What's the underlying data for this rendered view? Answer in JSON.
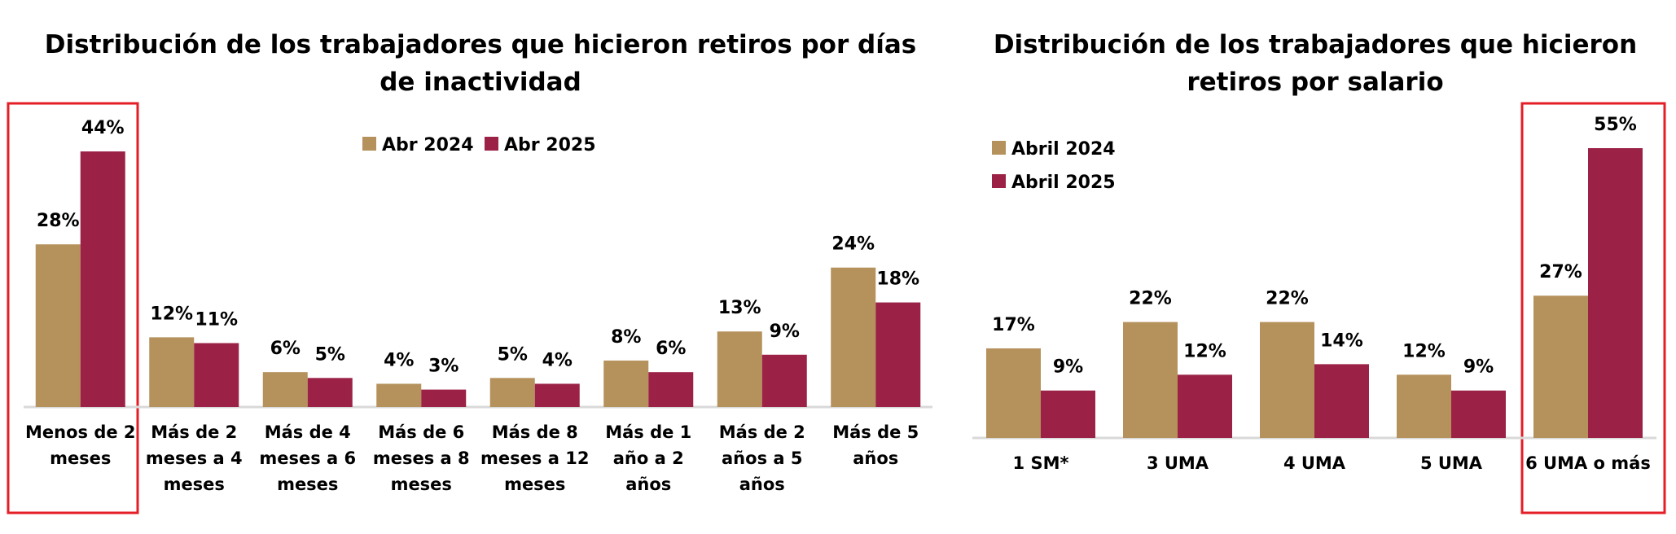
{
  "chart_data": [
    {
      "type": "bar",
      "title": "Distribución de los trabajadores que hicieron retiros por días de inactividad",
      "categories": [
        "Menos de 2 meses",
        "Más de 2 meses a 4 meses",
        "Más de 4 meses a 6 meses",
        "Más de 6 meses a 8 meses",
        "Más de 8 meses a 12 meses",
        "Más de 1 año a 2 años",
        "Más de 2 años a 5 años",
        "Más de 5 años"
      ],
      "series": [
        {
          "name": "Abr 2024",
          "color": "#b5915c",
          "values": [
            28,
            12,
            6,
            4,
            5,
            8,
            13,
            24
          ],
          "value_labels": [
            "28%",
            "12%",
            "6%",
            "4%",
            "5%",
            "8%",
            "13%",
            "24%"
          ]
        },
        {
          "name": "Abr 2025",
          "color": "#9b2246",
          "values": [
            44,
            11,
            5,
            3,
            4,
            6,
            9,
            18
          ],
          "value_labels": [
            "44%",
            "11%",
            "5%",
            "3%",
            "4%",
            "6%",
            "9%",
            "18%"
          ]
        }
      ],
      "legend": "top"
    },
    {
      "type": "bar",
      "title": "Distribución de los trabajadores que hicieron retiros por salario",
      "categories": [
        "1 SM*",
        "3 UMA",
        "4 UMA",
        "5 UMA",
        "6 UMA o más"
      ],
      "series": [
        {
          "name": "Abril 2024",
          "color": "#b5915c",
          "values": [
            17,
            22,
            22,
            12,
            27
          ],
          "value_labels": [
            "17%",
            "22%",
            "22%",
            "12%",
            "27%"
          ]
        },
        {
          "name": "Abril 2025",
          "color": "#9b2246",
          "values": [
            9,
            12,
            14,
            9,
            55
          ],
          "value_labels": [
            "9%",
            "12%",
            "14%",
            "9%",
            "55%"
          ]
        }
      ],
      "legend": "top-left"
    }
  ]
}
